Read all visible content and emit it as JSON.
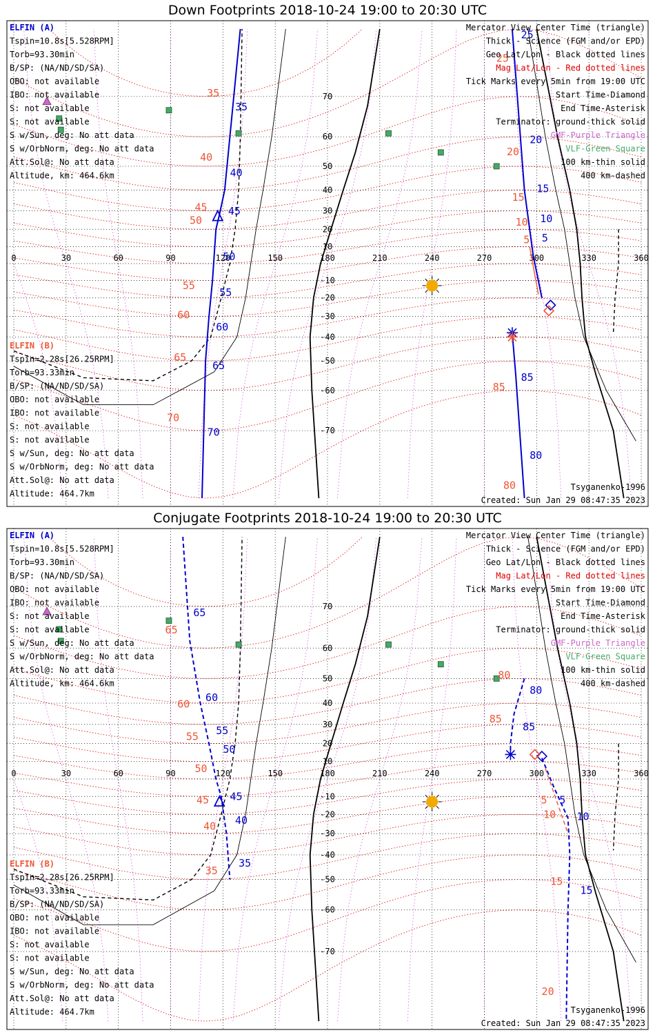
{
  "colors": {
    "elfin_a": "#0000cc",
    "elfin_b": "#ee5533",
    "geo_grid": "#000000",
    "mag_grid": "#dd0000",
    "mlt_grid": "#dd55dd",
    "gmf": "#cc66cc",
    "vlf": "#44aa66",
    "sun": "#f2a900"
  },
  "chart_data": [
    {
      "type": "scatter",
      "title": "Down Footprints 2018-10-24 19:00 to 20:30 UTC",
      "xlim": [
        0,
        360
      ],
      "ylim": [
        -80,
        80
      ],
      "x_ticks": [
        0,
        30,
        60,
        90,
        120,
        150,
        180,
        210,
        240,
        270,
        300,
        330,
        360
      ],
      "y_ticks": [
        70,
        60,
        50,
        40,
        30,
        20,
        10,
        -10,
        -20,
        -30,
        -40,
        -50,
        -60,
        -70
      ],
      "legend": [
        "Mercator View Center Time (triangle)",
        "Thick - Science (FGM and/or EPD)",
        "Geo Lat/Lon - Black dotted lines",
        "Mag Lat/Lon - Red dotted lines",
        "Tick Marks every 5min from 19:00 UTC",
        "Start Time-Diamond",
        "End Time-Asterisk",
        "Terminator: ground-thick solid",
        "GMF-Purple Triangle",
        "VLF-Green Square",
        "100 km-thin solid",
        "400 km-dashed"
      ],
      "info_a": {
        "label": "ELFIN (A)",
        "lines": [
          "Tspin=10.8s[5.528RPM]",
          "Torb=93.30min",
          "B/SP: (NA/ND/SD/SA)",
          "OBO: not available",
          "IBO: not available",
          "S: not available",
          "S: not available",
          "S w/Sun, deg: No att data",
          "S w/OrbNorm, deg: No att data",
          "Att.Sol@: No att data",
          "Altitude, km: 464.6km"
        ]
      },
      "info_b": {
        "label": "ELFIN (B)",
        "lines": [
          "Tspin=2.28s[26.25RPM]",
          "Torb=93.33min",
          "B/SP: (NA/ND/SD/SA)",
          "OBO: not available",
          "IBO: not available",
          "S: not available",
          "S: not available",
          "S w/Sun, deg: No att data",
          "S w/OrbNorm, deg: No att data",
          "Att.Sol@: No att data",
          "Altitude: 464.7km"
        ]
      },
      "model": "Tsyganenko-1996",
      "created": "Created: Sun Jan 29 08:47:35 2023",
      "sun": {
        "lon": 240,
        "lat": -13
      },
      "vlf_stations": [
        {
          "lon": 89,
          "lat": 67
        },
        {
          "lon": 26,
          "lat": 65
        },
        {
          "lon": 27,
          "lat": 62
        },
        {
          "lon": 129,
          "lat": 61
        },
        {
          "lon": 215,
          "lat": 61
        },
        {
          "lon": 245,
          "lat": 55
        },
        {
          "lon": 277,
          "lat": 50
        }
      ],
      "gmf_stations": [
        {
          "lon": 19,
          "lat": 69
        }
      ],
      "terminator_ground": [
        [
          175,
          -80
        ],
        [
          171,
          -60
        ],
        [
          170,
          -40
        ],
        [
          172,
          -20
        ],
        [
          176,
          0
        ],
        [
          182,
          20
        ],
        [
          189,
          40
        ],
        [
          196,
          55
        ],
        [
          203,
          68
        ],
        [
          210,
          80
        ]
      ],
      "terminator_side": [
        [
          300,
          80
        ],
        [
          312,
          60
        ],
        [
          319,
          40
        ],
        [
          323,
          20
        ],
        [
          325,
          0
        ],
        [
          326,
          -20
        ],
        [
          328,
          -40
        ],
        [
          334,
          -55
        ],
        [
          344,
          -70
        ],
        [
          350,
          -80
        ]
      ],
      "terminator_100": [
        [
          295,
          80
        ],
        [
          305,
          60
        ],
        [
          311,
          40
        ],
        [
          316,
          20
        ],
        [
          319,
          0
        ],
        [
          322,
          -20
        ],
        [
          327,
          -40
        ],
        [
          340,
          -60
        ],
        [
          357,
          -72
        ]
      ],
      "terminator_100_w": [
        [
          0,
          -52
        ],
        [
          40,
          -64
        ],
        [
          80,
          -64
        ],
        [
          115,
          -54
        ],
        [
          128,
          -40
        ],
        [
          133,
          -20
        ],
        [
          136,
          0
        ],
        [
          139,
          20
        ],
        [
          143,
          40
        ],
        [
          148,
          60
        ],
        [
          156,
          80
        ]
      ],
      "terminator_400_w": [
        [
          0,
          -46
        ],
        [
          40,
          -56
        ],
        [
          80,
          -57
        ],
        [
          102,
          -50
        ],
        [
          113,
          -40
        ],
        [
          119,
          -20
        ],
        [
          124,
          0
        ],
        [
          127,
          20
        ],
        [
          129,
          40
        ],
        [
          130,
          60
        ],
        [
          131,
          80
        ]
      ],
      "terminator_400_e": [
        [
          347,
          20
        ],
        [
          347,
          0
        ],
        [
          345,
          -20
        ],
        [
          344,
          -38
        ]
      ],
      "track_a": [
        [
          130,
          80
        ],
        [
          121,
          40
        ],
        [
          118,
          28
        ],
        [
          116,
          20
        ],
        [
          114,
          -10
        ],
        [
          112,
          -30
        ],
        [
          110,
          -50
        ],
        [
          108,
          -80
        ]
      ],
      "track_b_seg1": [
        [
          286,
          80
        ],
        [
          293,
          40
        ],
        [
          296,
          20
        ],
        [
          298,
          5
        ],
        [
          303,
          -20
        ]
      ],
      "track_b_seg2": [
        [
          286,
          -38
        ],
        [
          288,
          -55
        ],
        [
          293,
          -80
        ]
      ],
      "track_a_red": [
        [
          296,
          10
        ],
        [
          301,
          -18
        ]
      ],
      "labels_a": [
        {
          "t": "35",
          "lon": 127,
          "lat": 67
        },
        {
          "t": "40",
          "lon": 124,
          "lat": 46
        },
        {
          "t": "45",
          "lon": 123,
          "lat": 28
        },
        {
          "t": "50",
          "lon": 120,
          "lat": 2
        },
        {
          "t": "55",
          "lon": 118,
          "lat": -19
        },
        {
          "t": "60",
          "lon": 116,
          "lat": -37
        },
        {
          "t": "65",
          "lon": 114,
          "lat": -53
        },
        {
          "t": "70",
          "lon": 111,
          "lat": -71
        },
        {
          "t": "25",
          "lon": 291,
          "lat": 79
        },
        {
          "t": "20",
          "lon": 296,
          "lat": 58
        },
        {
          "t": "15",
          "lon": 300,
          "lat": 39
        },
        {
          "t": "10",
          "lon": 302,
          "lat": 24
        },
        {
          "t": "5",
          "lon": 303,
          "lat": 13
        },
        {
          "t": "85",
          "lon": 291,
          "lat": -57
        },
        {
          "t": "80",
          "lon": 296,
          "lat": -75
        }
      ],
      "labels_b": [
        {
          "t": "35",
          "lon": 118,
          "lat": 70
        },
        {
          "t": "40",
          "lon": 114,
          "lat": 52
        },
        {
          "t": "45",
          "lon": 111,
          "lat": 30
        },
        {
          "t": "50",
          "lon": 108,
          "lat": 23
        },
        {
          "t": "55",
          "lon": 104,
          "lat": -15
        },
        {
          "t": "60",
          "lon": 101,
          "lat": -31
        },
        {
          "t": "65",
          "lon": 99,
          "lat": -50
        },
        {
          "t": "70",
          "lon": 95,
          "lat": -68
        },
        {
          "t": "25",
          "lon": 284,
          "lat": 76
        },
        {
          "t": "20",
          "lon": 290,
          "lat": 54
        },
        {
          "t": "15",
          "lon": 293,
          "lat": 35
        },
        {
          "t": "10",
          "lon": 295,
          "lat": 22
        },
        {
          "t": "5",
          "lon": 296,
          "lat": 12
        },
        {
          "t": "85",
          "lon": 282,
          "lat": -60
        },
        {
          "t": "80",
          "lon": 288,
          "lat": -79
        }
      ],
      "markers": [
        {
          "kind": "triangle",
          "color": "a",
          "lon": 117,
          "lat": 27
        },
        {
          "kind": "diamond",
          "color": "a",
          "lon": 308,
          "lat": -24
        },
        {
          "kind": "diamond",
          "color": "b",
          "lon": 307,
          "lat": -27
        },
        {
          "kind": "asterisk",
          "color": "a",
          "lon": 286,
          "lat": -38
        },
        {
          "kind": "asterisk",
          "color": "b",
          "lon": 286,
          "lat": -40
        }
      ]
    },
    {
      "type": "scatter",
      "title": "Conjugate Footprints 2018-10-24 19:00 to 20:30 UTC",
      "xlim": [
        0,
        360
      ],
      "ylim": [
        -80,
        80
      ],
      "x_ticks": [
        0,
        30,
        60,
        90,
        120,
        150,
        180,
        210,
        240,
        270,
        300,
        330,
        360
      ],
      "y_ticks": [
        70,
        60,
        50,
        40,
        30,
        20,
        10,
        -10,
        -20,
        -30,
        -40,
        -50,
        -60,
        -70
      ],
      "legend": [
        "Mercator View Center Time (triangle)",
        "Thick - Science (FGM and/or EPD)",
        "Geo Lat/Lon - Black dotted lines",
        "Mag Lat/Lon - Red dotted lines",
        "Tick Marks every 5min from 19:00 UTC",
        "Start Time-Diamond",
        "End Time-Asterisk",
        "Terminator: ground-thick solid",
        "GMF-Purple Triangle",
        "VLF-Green Square",
        "100 km-thin solid",
        "400 km-dashed"
      ],
      "info_a": {
        "label": "ELFIN (A)",
        "lines": [
          "Tspin=10.8s[5.528RPM]",
          "Torb=93.30min",
          "B/SP: (NA/ND/SD/SA)",
          "OBO: not available",
          "IBO: not available",
          "S: not available",
          "S: not available",
          "S w/Sun, deg: No att data",
          "S w/OrbNorm, deg: No att data",
          "Att.Sol@: No att data",
          "Altitude, km: 464.6km"
        ]
      },
      "info_b": {
        "label": "ELFIN (B)",
        "lines": [
          "Tspin=2.28s[26.25RPM]",
          "Torb=93.33min",
          "B/SP: (NA/ND/SD/SA)",
          "OBO: not available",
          "IBO: not available",
          "S: not available",
          "S: not available",
          "S w/Sun, deg: No att data",
          "S w/OrbNorm, deg: No att data",
          "Att.Sol@: No att data",
          "Altitude: 464.7km"
        ]
      },
      "model": "Tsyganenko-1996",
      "created": "Created: Sun Jan 29 08:47:35 2023",
      "sun": {
        "lon": 240,
        "lat": -13
      },
      "vlf_stations": [
        {
          "lon": 89,
          "lat": 67
        },
        {
          "lon": 26,
          "lat": 65
        },
        {
          "lon": 27,
          "lat": 62
        },
        {
          "lon": 129,
          "lat": 61
        },
        {
          "lon": 215,
          "lat": 61
        },
        {
          "lon": 245,
          "lat": 55
        },
        {
          "lon": 277,
          "lat": 50
        }
      ],
      "gmf_stations": [
        {
          "lon": 19,
          "lat": 69
        }
      ],
      "terminator_ground": [
        [
          175,
          -80
        ],
        [
          171,
          -60
        ],
        [
          170,
          -40
        ],
        [
          172,
          -20
        ],
        [
          176,
          0
        ],
        [
          182,
          20
        ],
        [
          189,
          40
        ],
        [
          196,
          55
        ],
        [
          203,
          68
        ],
        [
          210,
          80
        ]
      ],
      "terminator_side": [
        [
          300,
          80
        ],
        [
          312,
          60
        ],
        [
          319,
          40
        ],
        [
          323,
          20
        ],
        [
          325,
          0
        ],
        [
          326,
          -20
        ],
        [
          328,
          -40
        ],
        [
          334,
          -55
        ],
        [
          344,
          -70
        ],
        [
          350,
          -80
        ]
      ],
      "terminator_100": [
        [
          295,
          80
        ],
        [
          305,
          60
        ],
        [
          311,
          40
        ],
        [
          316,
          20
        ],
        [
          319,
          0
        ],
        [
          322,
          -20
        ],
        [
          327,
          -40
        ],
        [
          340,
          -60
        ],
        [
          357,
          -72
        ]
      ],
      "terminator_100_w": [
        [
          0,
          -52
        ],
        [
          40,
          -64
        ],
        [
          80,
          -64
        ],
        [
          115,
          -54
        ],
        [
          128,
          -40
        ],
        [
          133,
          -20
        ],
        [
          136,
          0
        ],
        [
          139,
          20
        ],
        [
          143,
          40
        ],
        [
          148,
          60
        ],
        [
          156,
          80
        ]
      ],
      "terminator_400_w": [
        [
          0,
          -46
        ],
        [
          40,
          -56
        ],
        [
          80,
          -57
        ],
        [
          102,
          -50
        ],
        [
          113,
          -40
        ],
        [
          119,
          -20
        ],
        [
          124,
          0
        ],
        [
          127,
          20
        ],
        [
          129,
          40
        ],
        [
          130,
          60
        ],
        [
          131,
          80
        ]
      ],
      "terminator_400_e": [
        [
          347,
          20
        ],
        [
          347,
          0
        ],
        [
          345,
          -20
        ],
        [
          344,
          -38
        ]
      ],
      "track_a": [
        [
          97,
          80
        ],
        [
          101,
          62
        ],
        [
          107,
          40
        ],
        [
          112,
          20
        ],
        [
          116,
          0
        ],
        [
          119,
          -10
        ],
        [
          122,
          -30
        ],
        [
          124,
          -50
        ]
      ],
      "track_b_seg1": [
        [
          293,
          50
        ],
        [
          287,
          35
        ],
        [
          285,
          20
        ],
        [
          285,
          14
        ]
      ],
      "track_b_seg2": [
        [
          303,
          12
        ],
        [
          310,
          -5
        ],
        [
          318,
          -22
        ],
        [
          319,
          -40
        ],
        [
          318,
          -60
        ],
        [
          317,
          -80
        ]
      ],
      "track_a_red": [
        [
          305,
          6
        ],
        [
          318,
          -30
        ]
      ],
      "labels_a": [
        {
          "t": "65",
          "lon": 103,
          "lat": 68
        },
        {
          "t": "60",
          "lon": 110,
          "lat": 41
        },
        {
          "t": "55",
          "lon": 116,
          "lat": 25
        },
        {
          "t": "50",
          "lon": 120,
          "lat": 15
        },
        {
          "t": "45",
          "lon": 124,
          "lat": -12
        },
        {
          "t": "40",
          "lon": 127,
          "lat": -25
        },
        {
          "t": "35",
          "lon": 129,
          "lat": -45
        },
        {
          "t": "80",
          "lon": 296,
          "lat": 44
        },
        {
          "t": "85",
          "lon": 292,
          "lat": 27
        },
        {
          "t": "5",
          "lon": 313,
          "lat": -14
        },
        {
          "t": "10",
          "lon": 323,
          "lat": -23
        },
        {
          "t": "15",
          "lon": 325,
          "lat": -55
        }
      ],
      "labels_b": [
        {
          "t": "65",
          "lon": 94,
          "lat": 64
        },
        {
          "t": "60",
          "lon": 101,
          "lat": 38
        },
        {
          "t": "55",
          "lon": 106,
          "lat": 22
        },
        {
          "t": "50",
          "lon": 111,
          "lat": 4
        },
        {
          "t": "45",
          "lon": 112,
          "lat": -14
        },
        {
          "t": "40",
          "lon": 116,
          "lat": -28
        },
        {
          "t": "35",
          "lon": 117,
          "lat": -48
        },
        {
          "t": "80",
          "lon": 285,
          "lat": 50
        },
        {
          "t": "85",
          "lon": 280,
          "lat": 31
        },
        {
          "t": "5",
          "lon": 306,
          "lat": -14
        },
        {
          "t": "10",
          "lon": 311,
          "lat": -22
        },
        {
          "t": "15",
          "lon": 315,
          "lat": -52
        },
        {
          "t": "20",
          "lon": 310,
          "lat": -77
        }
      ],
      "markers": [
        {
          "kind": "triangle",
          "color": "a",
          "lon": 118,
          "lat": -13
        },
        {
          "kind": "diamond",
          "color": "a",
          "lon": 303,
          "lat": 13
        },
        {
          "kind": "diamond",
          "color": "b",
          "lon": 299,
          "lat": 14
        },
        {
          "kind": "asterisk",
          "color": "a",
          "lon": 285,
          "lat": 14
        }
      ]
    }
  ]
}
